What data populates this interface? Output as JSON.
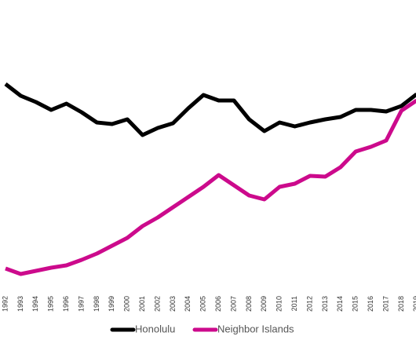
{
  "chart_data": {
    "type": "line",
    "categories": [
      "1992",
      "1993",
      "1994",
      "1995",
      "1996",
      "1997",
      "1998",
      "1999",
      "2000",
      "2001",
      "2002",
      "2003",
      "2004",
      "2005",
      "2006",
      "2007",
      "2008",
      "2009",
      "2010",
      "2011",
      "2012",
      "2013",
      "2014",
      "2015",
      "2016",
      "2017",
      "2018",
      "2019"
    ],
    "series": [
      {
        "name": "Honolulu",
        "color": "#000000",
        "values": [
          273,
          258,
          250,
          240,
          248,
          237,
          224,
          222,
          228,
          208,
          217,
          223,
          242,
          259,
          252,
          252,
          228,
          213,
          224,
          219,
          224,
          228,
          231,
          240,
          240,
          238,
          245,
          260
        ]
      },
      {
        "name": "Neighbor Islands",
        "color": "#cc0a8c",
        "values": [
          38,
          31,
          35,
          39,
          42,
          49,
          57,
          67,
          77,
          92,
          103,
          116,
          129,
          142,
          157,
          144,
          131,
          126,
          142,
          146,
          156,
          155,
          167,
          187,
          193,
          201,
          239,
          252
        ]
      }
    ],
    "ylim": [
      0,
      380
    ],
    "legend": "bottom"
  }
}
